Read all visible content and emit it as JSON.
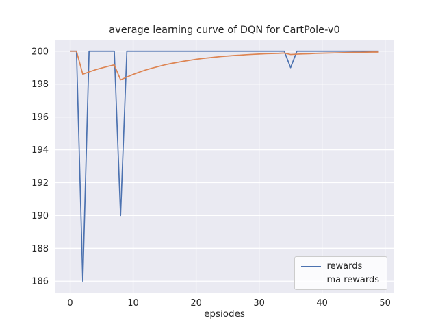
{
  "chart_data": {
    "type": "line",
    "title": "average learning curve of DQN for CartPole-v0",
    "xlabel": "epsiodes",
    "ylabel": "",
    "x": [
      0,
      1,
      2,
      3,
      4,
      5,
      6,
      7,
      8,
      9,
      10,
      11,
      12,
      13,
      14,
      15,
      16,
      17,
      18,
      19,
      20,
      21,
      22,
      23,
      24,
      25,
      26,
      27,
      28,
      29,
      30,
      31,
      32,
      33,
      34,
      35,
      36,
      37,
      38,
      39,
      40,
      41,
      42,
      43,
      44,
      45,
      46,
      47,
      48,
      49
    ],
    "series": [
      {
        "name": "rewards",
        "color": "#4c72b0",
        "values": [
          200,
          200,
          186,
          200,
          200,
          200,
          200,
          200,
          190,
          200,
          200,
          200,
          200,
          200,
          200,
          200,
          200,
          200,
          200,
          200,
          200,
          200,
          200,
          200,
          200,
          200,
          200,
          200,
          200,
          200,
          200,
          200,
          200,
          200,
          200,
          199,
          200,
          200,
          200,
          200,
          200,
          200,
          200,
          200,
          200,
          200,
          200,
          200,
          200,
          200
        ]
      },
      {
        "name": "ma rewards",
        "color": "#dd8452",
        "values": [
          200,
          200,
          198.6,
          198.74,
          198.87,
          198.98,
          199.08,
          199.17,
          198.26,
          198.43,
          198.59,
          198.73,
          198.86,
          198.97,
          199.07,
          199.17,
          199.25,
          199.32,
          199.39,
          199.45,
          199.51,
          199.56,
          199.6,
          199.64,
          199.68,
          199.71,
          199.74,
          199.76,
          199.79,
          199.81,
          199.83,
          199.85,
          199.86,
          199.87,
          199.89,
          199.8,
          199.82,
          199.84,
          199.85,
          199.87,
          199.88,
          199.89,
          199.9,
          199.91,
          199.92,
          199.93,
          199.93,
          199.94,
          199.95,
          199.95
        ]
      }
    ],
    "xticks": [
      0,
      10,
      20,
      30,
      40,
      50
    ],
    "yticks": [
      186,
      188,
      190,
      192,
      194,
      196,
      198,
      200
    ],
    "xlim": [
      -2.45,
      51.45
    ],
    "ylim": [
      185.3,
      200.7
    ],
    "grid": true,
    "legend_position": "lower right",
    "background": "#eaeaf2",
    "gridline_color": "#ffffff"
  }
}
